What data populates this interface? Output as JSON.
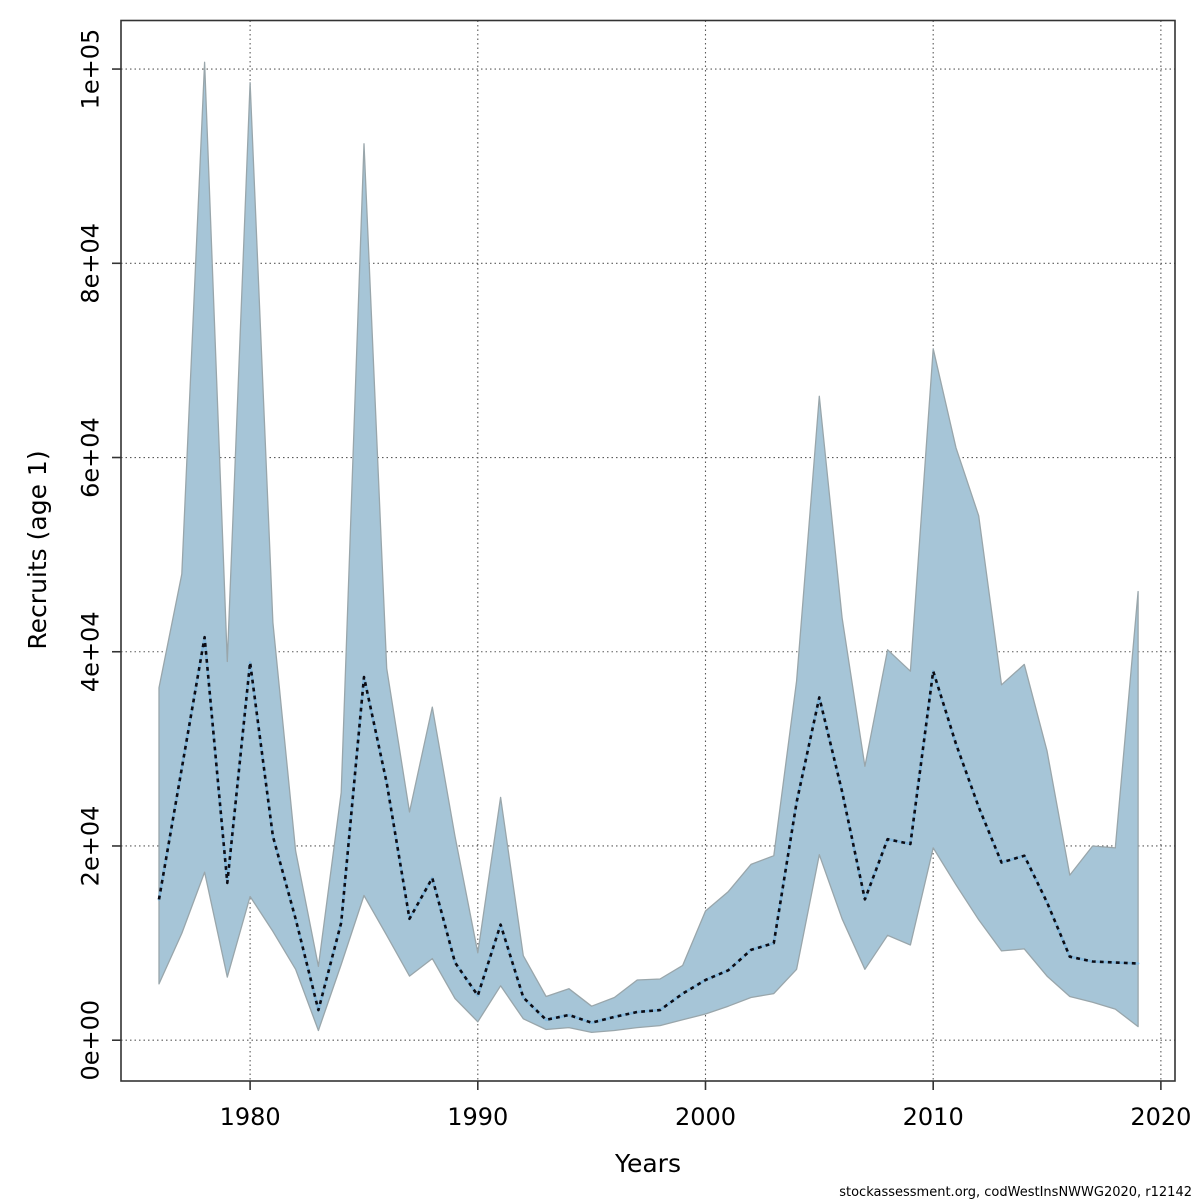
{
  "figure": {
    "footer": "stockassessment.org, codWestInsNWWG2020, r12142"
  },
  "chart_data": {
    "type": "area",
    "title": "",
    "xlabel": "Years",
    "ylabel": "Recruits (age 1)",
    "legend": "none",
    "grid": "dotted",
    "xlim": [
      1974.33,
      2020.62
    ],
    "ylim": [
      -4200,
      105000
    ],
    "x_ticks": [
      1980,
      1990,
      2000,
      2010,
      2020
    ],
    "x_tick_labels": [
      "1980",
      "1990",
      "2000",
      "2010",
      "2020"
    ],
    "y_ticks": [
      0,
      20000,
      40000,
      60000,
      80000,
      100000
    ],
    "y_tick_labels": [
      "0e+00",
      "2e+04",
      "4e+04",
      "6e+04",
      "8e+04",
      "1e+05"
    ],
    "years": [
      1976,
      1977,
      1978,
      1979,
      1980,
      1981,
      1982,
      1983,
      1984,
      1985,
      1986,
      1987,
      1988,
      1989,
      1990,
      1991,
      1992,
      1993,
      1994,
      1995,
      1996,
      1997,
      1998,
      1999,
      2000,
      2001,
      2002,
      2003,
      2004,
      2005,
      2006,
      2007,
      2008,
      2009,
      2010,
      2011,
      2012,
      2013,
      2014,
      2015,
      2016,
      2017,
      2018,
      2019
    ],
    "series": [
      {
        "name": "median",
        "style": "dotted",
        "values": [
          14500,
          28000,
          41500,
          16200,
          38900,
          21000,
          12500,
          3100,
          12100,
          37400,
          26500,
          12500,
          16700,
          8000,
          4600,
          11900,
          4400,
          2100,
          2600,
          1800,
          2400,
          2900,
          3100,
          4800,
          6200,
          7200,
          9300,
          10000,
          24500,
          35300,
          25600,
          14500,
          20700,
          20200,
          38000,
          30500,
          24000,
          18300,
          19000,
          14200,
          8600,
          8100,
          8000,
          7900
        ]
      },
      {
        "name": "ci_lower",
        "style": "band-lower",
        "values": [
          5800,
          11000,
          17300,
          6500,
          14800,
          11200,
          7300,
          1000,
          7800,
          14900,
          10800,
          6600,
          8400,
          4300,
          1900,
          5600,
          2200,
          1100,
          1300,
          800,
          1000,
          1300,
          1500,
          2100,
          2700,
          3500,
          4400,
          4800,
          7300,
          19100,
          12500,
          7300,
          10800,
          9800,
          19800,
          16000,
          12400,
          9200,
          9400,
          6600,
          4500,
          3900,
          3200,
          1400
        ]
      },
      {
        "name": "ci_upper",
        "style": "band-upper",
        "values": [
          36300,
          48000,
          100700,
          39000,
          98600,
          43000,
          19500,
          7600,
          25500,
          92300,
          38300,
          23500,
          34300,
          21000,
          9000,
          25000,
          8700,
          4500,
          5300,
          3500,
          4400,
          6200,
          6300,
          7700,
          13300,
          15300,
          18100,
          19000,
          37000,
          66300,
          43500,
          28200,
          40200,
          38000,
          71200,
          61000,
          54000,
          36600,
          38700,
          29800,
          17000,
          20000,
          19800,
          46200
        ]
      }
    ],
    "colors": {
      "band_fill": "#a6c5d7",
      "band_edge": "#99a6ab",
      "median_dash": "#0c0c14",
      "median_halo": "#85b9dc",
      "grid": "#5a5a5a",
      "axis": "#333333"
    }
  }
}
